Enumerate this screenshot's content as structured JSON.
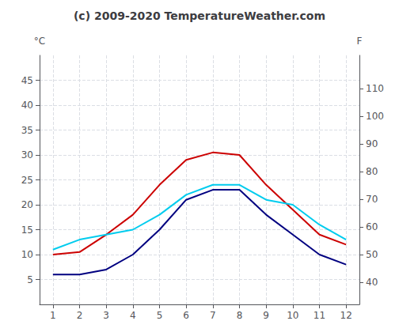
{
  "chart_data": {
    "type": "line",
    "title": "(c) 2009-2020 TemperatureWeather.com",
    "x": [
      1,
      2,
      3,
      4,
      5,
      6,
      7,
      8,
      9,
      10,
      11,
      12
    ],
    "series": [
      {
        "color": "#cc0000",
        "values": [
          10,
          10.5,
          14,
          18,
          24,
          29,
          30.5,
          30,
          24,
          19,
          14,
          12
        ]
      },
      {
        "color": "#000080",
        "values": [
          6,
          6,
          7,
          10,
          15,
          21,
          23,
          23,
          18,
          14,
          10,
          8
        ]
      },
      {
        "color": "#00ccee",
        "values": [
          11,
          13,
          14,
          15,
          18,
          22,
          24,
          24,
          21,
          20,
          16,
          13
        ]
      }
    ],
    "xlim": [
      0.5,
      12.5
    ],
    "xticks": [
      1,
      2,
      3,
      4,
      5,
      6,
      7,
      8,
      9,
      10,
      11,
      12
    ],
    "ylabel": "°C",
    "ylim": [
      0,
      50
    ],
    "yticks": [
      5,
      10,
      15,
      20,
      25,
      30,
      35,
      40,
      45
    ],
    "y2label": "F",
    "y2lim": [
      32,
      122
    ],
    "y2ticks": [
      40,
      50,
      60,
      70,
      80,
      90,
      100,
      110
    ],
    "grid": true
  }
}
